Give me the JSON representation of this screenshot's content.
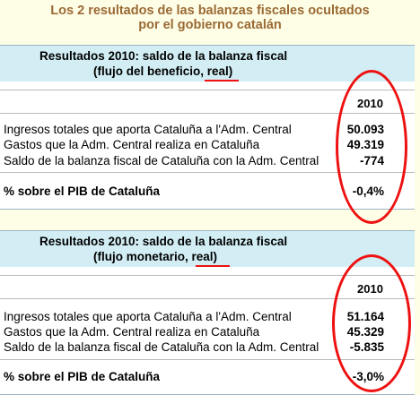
{
  "title": {
    "line1": "Los 2 resultados de las balanzas fiscales ocultados",
    "line2": "por el gobierno catalán"
  },
  "tables": [
    {
      "header_line1": "Resultados 2010: saldo de la balanza fiscal",
      "header_line2_prefix": "(flujo del beneficio, ",
      "header_line2_emph": "real",
      "header_line2_suffix": ")",
      "year": "2010",
      "rows": [
        {
          "label": "Ingresos totales que aporta Cataluña a l'Adm. Central",
          "value": "50.093"
        },
        {
          "label": "Gastos que la Adm. Central realiza en Cataluña",
          "value": "49.319"
        },
        {
          "label": "Saldo de la balanza fiscal de Cataluña con la Adm. Central",
          "value": "-774"
        }
      ],
      "pct_label": "% sobre el PIB de Cataluña",
      "pct_value": "-0,4%"
    },
    {
      "header_line1": "Resultados 2010: saldo de la balanza fiscal",
      "header_line2_prefix": "(flujo monetario, ",
      "header_line2_emph": "real",
      "header_line2_suffix": ")",
      "year": "2010",
      "rows": [
        {
          "label": "Ingresos totales que aporta Cataluña a l'Adm. Central",
          "value": "51.164"
        },
        {
          "label": "Gastos que la Adm. Central realiza en Cataluña",
          "value": "45.329"
        },
        {
          "label": "Saldo de la balanza fiscal de Cataluña con la Adm. Central",
          "value": "-5.835"
        }
      ],
      "pct_label": "% sobre el PIB de Cataluña",
      "pct_value": "-3,0%"
    }
  ]
}
